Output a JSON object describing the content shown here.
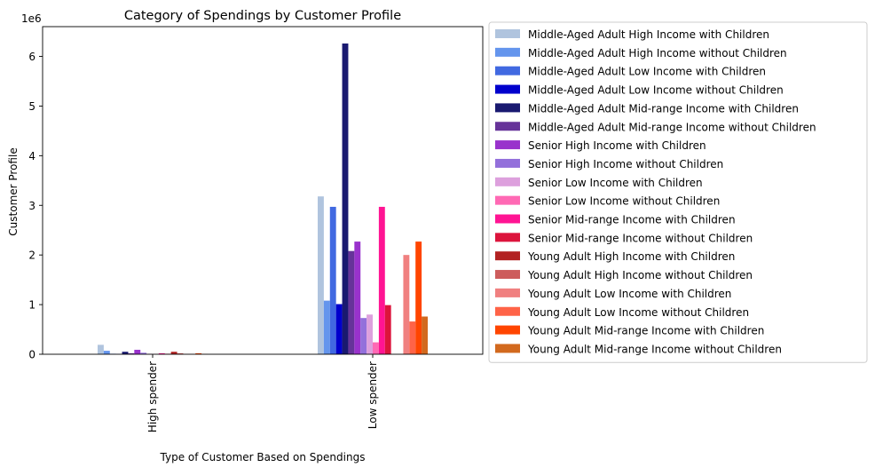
{
  "chart_data": {
    "type": "bar",
    "title": "Category of Spendings by Customer Profile",
    "xlabel": "Type of Customer Based on Spendings",
    "ylabel": "Customer Profile",
    "y_multiplier_label": "1e6",
    "ylim": [
      0,
      6600000
    ],
    "y_ticks": [
      0,
      1000000,
      2000000,
      3000000,
      4000000,
      5000000,
      6000000
    ],
    "y_tick_labels": [
      "0",
      "1",
      "2",
      "3",
      "4",
      "5",
      "6"
    ],
    "categories": [
      "High spender",
      "Low spender"
    ],
    "grid": false,
    "legend_position": "outside right, top",
    "series": [
      {
        "name": "Middle-Aged Adult High Income with Children",
        "color": "#b0c4de",
        "values": [
          190000,
          3180000
        ]
      },
      {
        "name": "Middle-Aged Adult High Income without Children",
        "color": "#6495ed",
        "values": [
          70000,
          1080000
        ]
      },
      {
        "name": "Middle-Aged Adult Low Income with Children",
        "color": "#4169e1",
        "values": [
          10000,
          2970000
        ]
      },
      {
        "name": "Middle-Aged Adult Low Income without Children",
        "color": "#0000cd",
        "values": [
          5000,
          1010000
        ]
      },
      {
        "name": "Middle-Aged Adult Mid-range Income with Children",
        "color": "#191970",
        "values": [
          50000,
          6260000
        ]
      },
      {
        "name": "Middle-Aged Adult Mid-range Income without Children",
        "color": "#663399",
        "values": [
          20000,
          2080000
        ]
      },
      {
        "name": "Senior High Income with Children",
        "color": "#9932cc",
        "values": [
          90000,
          2270000
        ]
      },
      {
        "name": "Senior High Income without Children",
        "color": "#9370db",
        "values": [
          30000,
          730000
        ]
      },
      {
        "name": "Senior Low Income with Children",
        "color": "#dda0dd",
        "values": [
          10000,
          800000
        ]
      },
      {
        "name": "Senior Low Income without Children",
        "color": "#ff69b4",
        "values": [
          5000,
          240000
        ]
      },
      {
        "name": "Senior Mid-range Income with Children",
        "color": "#ff1493",
        "values": [
          20000,
          2970000
        ]
      },
      {
        "name": "Senior Mid-range Income without Children",
        "color": "#dc143c",
        "values": [
          10000,
          990000
        ]
      },
      {
        "name": "Young Adult High Income with Children",
        "color": "#b22222",
        "values": [
          50000,
          0
        ]
      },
      {
        "name": "Young Adult High Income without Children",
        "color": "#cd5c5c",
        "values": [
          20000,
          0
        ]
      },
      {
        "name": "Young Adult Low Income with Children",
        "color": "#f08080",
        "values": [
          5000,
          2000000
        ]
      },
      {
        "name": "Young Adult Low Income without Children",
        "color": "#ff6347",
        "values": [
          5000,
          660000
        ]
      },
      {
        "name": "Young Adult Mid-range Income with Children",
        "color": "#ff4500",
        "values": [
          20000,
          2270000
        ]
      },
      {
        "name": "Young Adult Mid-range Income without Children",
        "color": "#d2691e",
        "values": [
          5000,
          760000
        ]
      }
    ]
  }
}
